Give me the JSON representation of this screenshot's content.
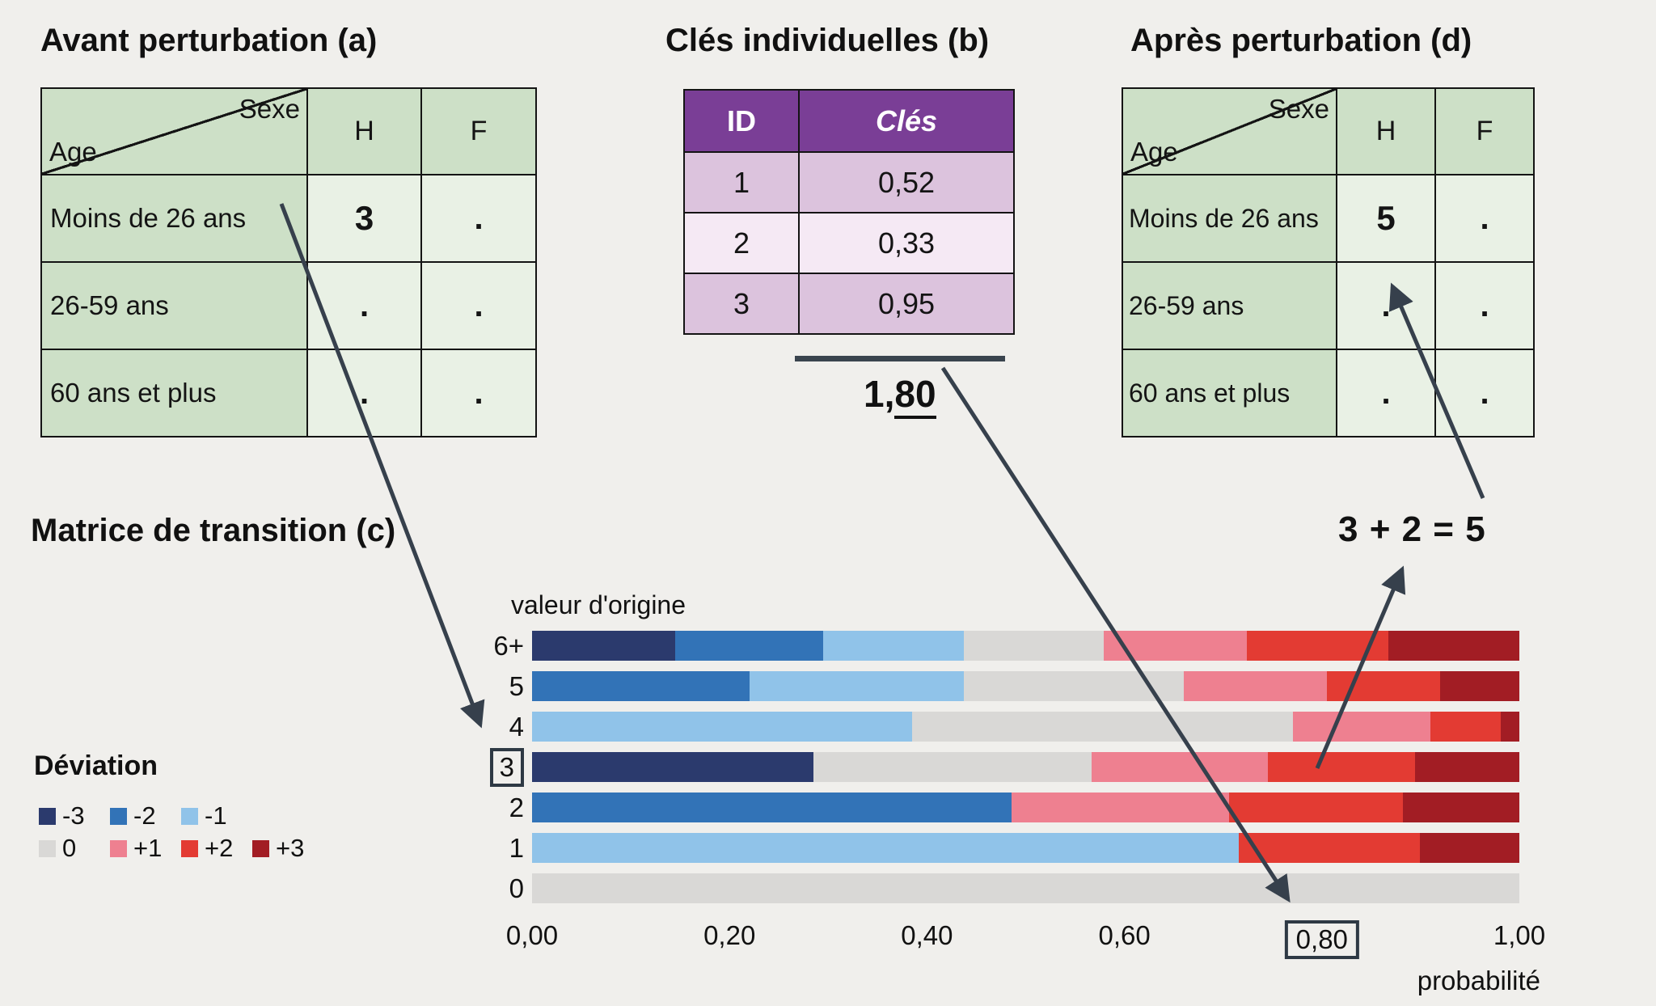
{
  "titles": {
    "avant": "Avant perturbation (a)",
    "cles": "Clés individuelles (b)",
    "apres": "Après perturbation (d)",
    "matrice": "Matrice de transition (c)"
  },
  "tables": {
    "avant": {
      "corner_top": "Sexe",
      "corner_bottom": "Age",
      "col_headers": [
        "H",
        "F"
      ],
      "rows": [
        {
          "label": "Moins de 26 ans",
          "h": "3",
          "f": "."
        },
        {
          "label": "26-59 ans",
          "h": ".",
          "f": "."
        },
        {
          "label": "60 ans et plus",
          "h": ".",
          "f": "."
        }
      ]
    },
    "cles": {
      "col_headers": [
        "ID",
        "Clés"
      ],
      "rows": [
        {
          "id": "1",
          "cle": "0,52"
        },
        {
          "id": "2",
          "cle": "0,33"
        },
        {
          "id": "3",
          "cle": "0,95"
        }
      ],
      "sum_prefix": "1,",
      "sum_underlined": "80"
    },
    "apres": {
      "corner_top": "Sexe",
      "corner_bottom": "Age",
      "col_headers": [
        "H",
        "F"
      ],
      "rows": [
        {
          "label": "Moins de 26 ans",
          "h": "5",
          "f": "."
        },
        {
          "label": "26-59 ans",
          "h": ".",
          "f": "."
        },
        {
          "label": "60 ans et plus",
          "h": ".",
          "f": "."
        }
      ]
    }
  },
  "equation": "3 + 2 = 5",
  "legend": {
    "title": "Déviation",
    "rows": [
      [
        {
          "label": "-3",
          "color": "#2b3a6d"
        },
        {
          "label": "-2",
          "color": "#3273b7"
        },
        {
          "label": "-1",
          "color": "#90c3e9"
        }
      ],
      [
        {
          "label": "0",
          "color": "#d9d8d6"
        },
        {
          "label": "+1",
          "color": "#ee8090"
        },
        {
          "label": "+2",
          "color": "#e33b33"
        },
        {
          "label": "+3",
          "color": "#a21d24"
        }
      ]
    ]
  },
  "chart_data": {
    "type": "bar",
    "orientation": "horizontal-stacked",
    "title": "valeur d'origine",
    "xlabel": "probabilité",
    "xlim": [
      0,
      1
    ],
    "x_ticks": [
      "0,00",
      "0,20",
      "0,40",
      "0,60",
      "0,80",
      "1,00"
    ],
    "boxed_tick": "0,80",
    "boxed_row": "3",
    "categories": [
      "6+",
      "5",
      "4",
      "3",
      "2",
      "1",
      "0"
    ],
    "series": [
      {
        "name": "-3",
        "color": "#2b3a6d",
        "values": [
          0.145,
          0,
          0,
          0.285,
          0,
          0,
          0
        ]
      },
      {
        "name": "-2",
        "color": "#3273b7",
        "values": [
          0.15,
          0.22,
          0,
          0,
          0.486,
          0,
          0
        ]
      },
      {
        "name": "-1",
        "color": "#90c3e9",
        "values": [
          0.142,
          0.217,
          0.385,
          0,
          0,
          0.716,
          0
        ]
      },
      {
        "name": "0",
        "color": "#d9d8d6",
        "values": [
          0.142,
          0.223,
          0.386,
          0.282,
          0,
          0,
          1
        ]
      },
      {
        "name": "+1",
        "color": "#ee8090",
        "values": [
          0.145,
          0.145,
          0.139,
          0.178,
          0.22,
          0,
          0
        ]
      },
      {
        "name": "+2",
        "color": "#e33b33",
        "values": [
          0.143,
          0.115,
          0.071,
          0.149,
          0.176,
          0.183,
          0
        ]
      },
      {
        "name": "+3",
        "color": "#a21d24",
        "values": [
          0.133,
          0.08,
          0.019,
          0.106,
          0.118,
          0.101,
          0
        ]
      }
    ],
    "legend_position": "bottom-left",
    "grid": false
  }
}
